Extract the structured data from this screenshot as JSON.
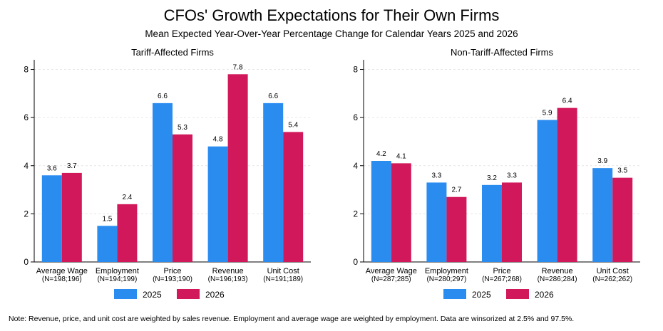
{
  "title": "CFOs' Growth Expectations for Their Own Firms",
  "subtitle": "Mean Expected Year-Over-Year Percentage Change for Calendar Years 2025 and 2026",
  "note": "Note: Revenue, price, and unit cost are weighted by sales revenue. Employment and average wage are weighted by employment. Data are winsorized at 2.5% and 97.5%.",
  "colors": {
    "s2025": "#2b8cf0",
    "s2026": "#d1185a",
    "grid": "#e6e6e6",
    "axis": "#000000"
  },
  "chart_data": [
    {
      "type": "bar",
      "title": "Tariff-Affected Firms",
      "categories": [
        "Average Wage",
        "Employment",
        "Price",
        "Revenue",
        "Unit Cost"
      ],
      "category_sublabels": [
        "(N=198;196)",
        "(N=194;199)",
        "(N=193;190)",
        "(N=196;193)",
        "(N=191;189)"
      ],
      "series": [
        {
          "name": "2025",
          "values": [
            3.6,
            1.5,
            6.6,
            4.8,
            6.6
          ]
        },
        {
          "name": "2026",
          "values": [
            3.7,
            2.4,
            5.3,
            7.8,
            5.4
          ]
        }
      ],
      "yticks": [
        0,
        2,
        4,
        6,
        8
      ],
      "ylim": [
        0,
        8.4
      ],
      "legend_position": "bottom"
    },
    {
      "type": "bar",
      "title": "Non-Tariff-Affected Firms",
      "categories": [
        "Average Wage",
        "Employment",
        "Price",
        "Revenue",
        "Unit Cost"
      ],
      "category_sublabels": [
        "(N=287;285)",
        "(N=280;297)",
        "(N=267;268)",
        "(N=286;284)",
        "(N=262;262)"
      ],
      "series": [
        {
          "name": "2025",
          "values": [
            4.2,
            3.3,
            3.2,
            5.9,
            3.9
          ]
        },
        {
          "name": "2026",
          "values": [
            4.1,
            2.7,
            3.3,
            6.4,
            3.5
          ]
        }
      ],
      "yticks": [
        0,
        2,
        4,
        6,
        8
      ],
      "ylim": [
        0,
        8.4
      ],
      "legend_position": "bottom"
    }
  ]
}
